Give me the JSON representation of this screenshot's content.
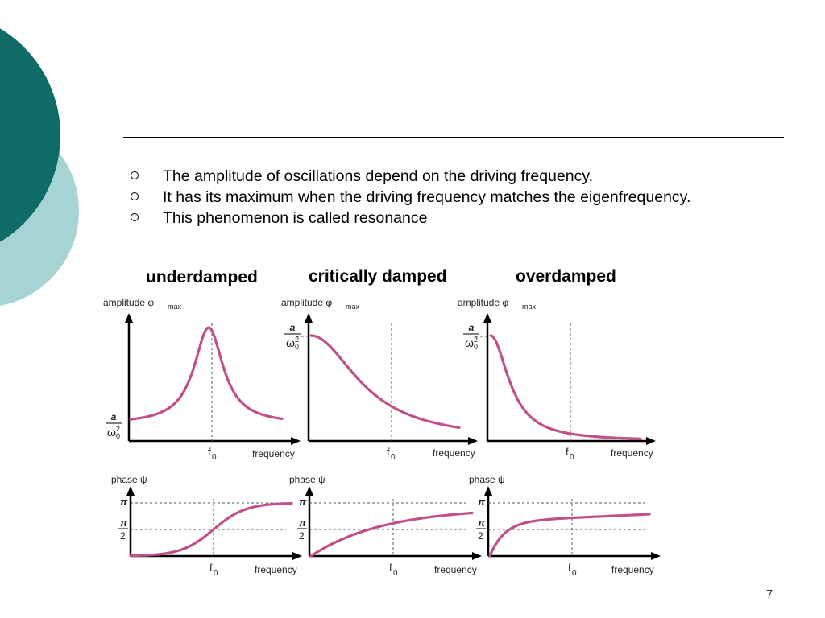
{
  "slide": {
    "bullets": [
      "The amplitude of oscillations depend on the driving frequency.",
      "It has its maximum when the driving frequency matches the eigenfrequency.",
      "This phenomenon is called resonance"
    ],
    "page_number": "7"
  },
  "colors": {
    "deco_dark": "#0e6b66",
    "deco_light": "#a6d3d3",
    "curve": "#c0508a"
  },
  "figure": {
    "titles": [
      "underdamped",
      "critically damped",
      "overdamped"
    ],
    "amp_label": "amplitude φ",
    "amp_sub": "max",
    "phase_label": "phase ψ",
    "f0_main": "f",
    "f0_sub": "0",
    "freq_label": "frequency",
    "frac_num": "a",
    "frac_den": "ω",
    "frac_den_sup": "2",
    "frac_den_sub": "0",
    "pi_label": "π",
    "two_label": "2"
  }
}
